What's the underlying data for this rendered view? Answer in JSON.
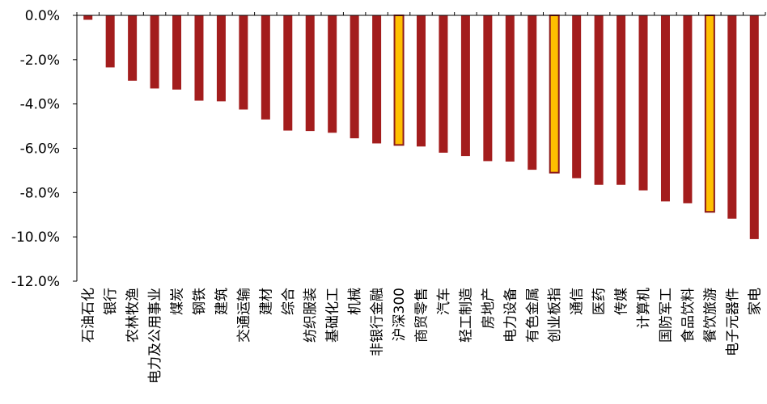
{
  "chart_data": {
    "type": "bar",
    "title": "",
    "xlabel": "",
    "ylabel": "",
    "ylim": [
      -12,
      0
    ],
    "yticks": [
      0,
      -2,
      -4,
      -6,
      -8,
      -10,
      -12
    ],
    "ytick_labels": [
      "0.0%",
      "-2.0%",
      "-4.0%",
      "-6.0%",
      "-8.0%",
      "-10.0%",
      "-12.0%"
    ],
    "grid": false,
    "legend": "none",
    "categories": [
      "石油石化",
      "银行",
      "农林牧渔",
      "电力及公用事业",
      "煤炭",
      "钢铁",
      "建筑",
      "交通运输",
      "建材",
      "综合",
      "纺织服装",
      "基础化工",
      "机械",
      "非银行金融",
      "沪深300",
      "商贸零售",
      "汽车",
      "轻工制造",
      "房地产",
      "电力设备",
      "有色金属",
      "创业板指",
      "通信",
      "医药",
      "传媒",
      "计算机",
      "国防军工",
      "食品饮料",
      "餐饮旅游",
      "电子元器件",
      "家电"
    ],
    "values": [
      -0.2,
      -2.35,
      -2.95,
      -3.3,
      -3.35,
      -3.85,
      -3.88,
      -4.25,
      -4.7,
      -5.2,
      -5.22,
      -5.3,
      -5.55,
      -5.78,
      -5.85,
      -5.92,
      -6.2,
      -6.35,
      -6.58,
      -6.6,
      -6.97,
      -7.1,
      -7.35,
      -7.65,
      -7.65,
      -7.9,
      -8.4,
      -8.48,
      -8.87,
      -9.18,
      -10.1
    ],
    "highlight": [
      "沪深300",
      "创业板指",
      "餐饮旅游"
    ],
    "colors": {
      "bar": "#A31D1D",
      "highlight_fill": "#FFC000",
      "highlight_stroke": "#8B1A1A",
      "axis": "#000000"
    }
  }
}
